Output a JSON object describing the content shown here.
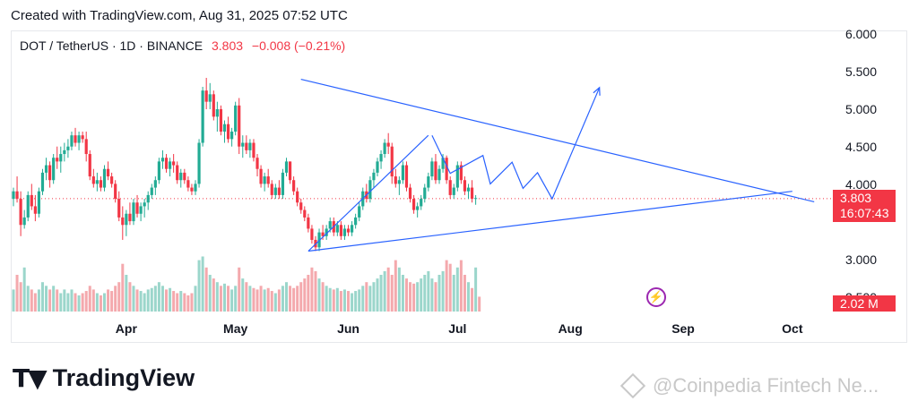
{
  "attribution": "Created with TradingView.com, Aug 31, 2025 07:52 UTC",
  "header": {
    "symbol": "DOT / TetherUS · 1D · BINANCE",
    "price": "3.803",
    "change": "−0.008 (−0.21%)"
  },
  "badges": {
    "price": "3.803",
    "countdown": "16:07:43",
    "volume": "2.02 M"
  },
  "logo": {
    "text": "TradingView",
    "icon": "tradingview-logo-icon"
  },
  "watermark": {
    "text": "@Coinpedia Fintech Ne...",
    "icon": "coinpedia-diamond-icon"
  },
  "colors": {
    "up": "#22ab94",
    "down": "#f23645",
    "up_vol": "#9bd6cb",
    "down_vol": "#f4a9ad",
    "drawing": "#2962ff",
    "price_line": "#f23645",
    "flash": "#9c27b0"
  },
  "chart_data": {
    "type": "candlestick",
    "symbol": "DOT / TetherUS",
    "interval": "1D",
    "exchange": "BINANCE",
    "y_ticks": [
      "6.000",
      "5.500",
      "5.000",
      "4.500",
      "4.000",
      "3.000",
      "2.500"
    ],
    "ylim": [
      2.3,
      6.05
    ],
    "x_ticks": [
      "Apr",
      "May",
      "Jun",
      "Jul",
      "Aug",
      "Sep",
      "Oct"
    ],
    "x_tick_days": [
      31,
      61,
      92,
      122,
      153,
      184,
      214
    ],
    "last_price": 3.803,
    "candles": [
      [
        3.8,
        3.95,
        3.7,
        3.9
      ],
      [
        3.9,
        4.1,
        3.75,
        3.8
      ],
      [
        3.8,
        3.9,
        3.3,
        3.45
      ],
      [
        3.45,
        3.65,
        3.4,
        3.55
      ],
      [
        3.55,
        3.9,
        3.5,
        3.85
      ],
      [
        3.85,
        4.0,
        3.65,
        3.7
      ],
      [
        3.7,
        3.85,
        3.5,
        3.6
      ],
      [
        3.6,
        3.95,
        3.55,
        3.9
      ],
      [
        3.9,
        4.2,
        3.85,
        4.15
      ],
      [
        4.15,
        4.35,
        4.05,
        4.25
      ],
      [
        4.25,
        4.3,
        3.95,
        4.05
      ],
      [
        4.05,
        4.4,
        4.0,
        4.35
      ],
      [
        4.35,
        4.5,
        4.2,
        4.3
      ],
      [
        4.3,
        4.5,
        4.15,
        4.4
      ],
      [
        4.4,
        4.55,
        4.3,
        4.45
      ],
      [
        4.45,
        4.6,
        4.35,
        4.5
      ],
      [
        4.5,
        4.7,
        4.45,
        4.65
      ],
      [
        4.65,
        4.75,
        4.5,
        4.55
      ],
      [
        4.55,
        4.7,
        4.45,
        4.65
      ],
      [
        4.65,
        4.7,
        4.55,
        4.6
      ],
      [
        4.6,
        4.7,
        4.3,
        4.4
      ],
      [
        4.4,
        4.45,
        4.05,
        4.1
      ],
      [
        4.1,
        4.2,
        3.95,
        4.0
      ],
      [
        4.0,
        4.15,
        3.9,
        4.05
      ],
      [
        4.05,
        4.1,
        3.9,
        3.95
      ],
      [
        3.95,
        4.25,
        3.9,
        4.2
      ],
      [
        4.2,
        4.3,
        4.05,
        4.1
      ],
      [
        4.1,
        4.15,
        3.95,
        4.0
      ],
      [
        4.0,
        4.05,
        3.75,
        3.8
      ],
      [
        3.8,
        3.9,
        3.5,
        3.55
      ],
      [
        3.55,
        3.7,
        3.25,
        3.45
      ],
      [
        3.45,
        3.65,
        3.3,
        3.6
      ],
      [
        3.6,
        3.75,
        3.45,
        3.5
      ],
      [
        3.5,
        3.8,
        3.45,
        3.75
      ],
      [
        3.75,
        3.85,
        3.55,
        3.6
      ],
      [
        3.6,
        3.75,
        3.5,
        3.7
      ],
      [
        3.7,
        3.8,
        3.55,
        3.75
      ],
      [
        3.75,
        3.9,
        3.65,
        3.85
      ],
      [
        3.85,
        4.0,
        3.8,
        3.95
      ],
      [
        3.95,
        4.1,
        3.85,
        4.05
      ],
      [
        4.05,
        4.35,
        4.0,
        4.3
      ],
      [
        4.3,
        4.45,
        4.2,
        4.35
      ],
      [
        4.35,
        4.4,
        4.15,
        4.2
      ],
      [
        4.2,
        4.35,
        4.1,
        4.3
      ],
      [
        4.3,
        4.4,
        4.15,
        4.25
      ],
      [
        4.25,
        4.3,
        4.0,
        4.05
      ],
      [
        4.05,
        4.2,
        3.95,
        4.15
      ],
      [
        4.15,
        4.2,
        4.0,
        4.05
      ],
      [
        4.05,
        4.1,
        3.9,
        3.95
      ],
      [
        3.95,
        4.0,
        3.85,
        3.9
      ],
      [
        3.9,
        4.05,
        3.85,
        4.0
      ],
      [
        4.0,
        4.6,
        3.95,
        4.55
      ],
      [
        4.55,
        5.3,
        4.5,
        5.25
      ],
      [
        5.25,
        5.42,
        5.0,
        5.1
      ],
      [
        5.1,
        5.35,
        5.0,
        5.2
      ],
      [
        5.2,
        5.25,
        4.85,
        4.9
      ],
      [
        4.9,
        5.1,
        4.7,
        5.0
      ],
      [
        5.0,
        5.05,
        4.65,
        4.7
      ],
      [
        4.7,
        4.85,
        4.55,
        4.8
      ],
      [
        4.8,
        4.9,
        4.55,
        4.6
      ],
      [
        4.6,
        4.75,
        4.5,
        4.7
      ],
      [
        4.7,
        5.1,
        4.65,
        5.05
      ],
      [
        5.05,
        5.15,
        4.4,
        4.5
      ],
      [
        4.5,
        4.65,
        4.35,
        4.55
      ],
      [
        4.55,
        4.65,
        4.4,
        4.45
      ],
      [
        4.45,
        4.6,
        4.35,
        4.55
      ],
      [
        4.55,
        4.6,
        4.3,
        4.35
      ],
      [
        4.35,
        4.4,
        4.1,
        4.2
      ],
      [
        4.2,
        4.25,
        3.95,
        4.0
      ],
      [
        4.0,
        4.15,
        3.9,
        4.1
      ],
      [
        4.1,
        4.2,
        3.95,
        4.0
      ],
      [
        4.0,
        4.05,
        3.8,
        3.85
      ],
      [
        3.85,
        4.0,
        3.8,
        3.95
      ],
      [
        3.95,
        4.05,
        3.8,
        3.85
      ],
      [
        3.85,
        4.2,
        3.8,
        4.15
      ],
      [
        4.15,
        4.35,
        4.1,
        4.3
      ],
      [
        4.3,
        4.3,
        4.0,
        4.05
      ],
      [
        4.05,
        4.1,
        3.85,
        3.9
      ],
      [
        3.9,
        3.95,
        3.7,
        3.75
      ],
      [
        3.75,
        3.8,
        3.6,
        3.65
      ],
      [
        3.65,
        3.7,
        3.5,
        3.55
      ],
      [
        3.55,
        3.6,
        3.35,
        3.4
      ],
      [
        3.4,
        3.45,
        3.2,
        3.25
      ],
      [
        3.25,
        3.3,
        3.1,
        3.15
      ],
      [
        3.15,
        3.4,
        3.1,
        3.35
      ],
      [
        3.35,
        3.45,
        3.25,
        3.3
      ],
      [
        3.3,
        3.45,
        3.25,
        3.4
      ],
      [
        3.4,
        3.55,
        3.35,
        3.5
      ],
      [
        3.5,
        3.55,
        3.3,
        3.35
      ],
      [
        3.35,
        3.5,
        3.3,
        3.45
      ],
      [
        3.45,
        3.5,
        3.25,
        3.3
      ],
      [
        3.3,
        3.45,
        3.25,
        3.4
      ],
      [
        3.4,
        3.45,
        3.3,
        3.35
      ],
      [
        3.35,
        3.5,
        3.3,
        3.45
      ],
      [
        3.45,
        3.6,
        3.4,
        3.55
      ],
      [
        3.55,
        3.75,
        3.5,
        3.7
      ],
      [
        3.7,
        3.95,
        3.65,
        3.9
      ],
      [
        3.9,
        4.0,
        3.75,
        3.8
      ],
      [
        3.8,
        4.1,
        3.75,
        4.05
      ],
      [
        4.05,
        4.2,
        3.95,
        4.15
      ],
      [
        4.15,
        4.35,
        4.1,
        4.3
      ],
      [
        4.3,
        4.45,
        4.2,
        4.4
      ],
      [
        4.4,
        4.6,
        4.35,
        4.55
      ],
      [
        4.55,
        4.68,
        4.4,
        4.5
      ],
      [
        4.5,
        4.55,
        4.0,
        4.1
      ],
      [
        4.1,
        4.2,
        3.95,
        4.0
      ],
      [
        4.0,
        4.1,
        3.85,
        4.05
      ],
      [
        4.05,
        4.3,
        4.0,
        4.25
      ],
      [
        4.25,
        4.3,
        3.9,
        3.95
      ],
      [
        3.95,
        4.0,
        3.75,
        3.8
      ],
      [
        3.8,
        3.85,
        3.6,
        3.65
      ],
      [
        3.65,
        3.75,
        3.55,
        3.7
      ],
      [
        3.7,
        3.85,
        3.65,
        3.8
      ],
      [
        3.8,
        4.0,
        3.75,
        3.95
      ],
      [
        3.95,
        4.15,
        3.9,
        4.1
      ],
      [
        4.1,
        4.35,
        4.05,
        4.3
      ],
      [
        4.3,
        4.4,
        4.0,
        4.05
      ],
      [
        4.05,
        4.25,
        4.0,
        4.2
      ],
      [
        4.2,
        4.4,
        4.15,
        4.35
      ],
      [
        4.35,
        4.38,
        4.0,
        4.05
      ],
      [
        4.05,
        4.1,
        3.8,
        3.85
      ],
      [
        3.85,
        4.0,
        3.8,
        3.95
      ],
      [
        3.95,
        4.3,
        3.9,
        4.25
      ],
      [
        4.25,
        4.3,
        4.0,
        4.05
      ],
      [
        4.05,
        4.1,
        3.85,
        3.9
      ],
      [
        3.9,
        4.0,
        3.8,
        3.95
      ],
      [
        3.95,
        4.05,
        3.75,
        3.8
      ],
      [
        3.8,
        3.85,
        3.72,
        3.81
      ]
    ],
    "volume_millions": [
      3,
      5,
      4,
      6,
      3.5,
      3,
      2.5,
      3,
      4,
      3.5,
      3,
      3.5,
      3,
      2.5,
      3,
      2.5,
      3,
      2.5,
      2.2,
      2.5,
      2.8,
      3.5,
      3,
      2.5,
      2.2,
      2.5,
      3,
      2.8,
      3.5,
      4,
      6.5,
      5,
      4,
      3.5,
      3,
      2.8,
      2.5,
      3,
      3.2,
      3.5,
      4,
      3.5,
      3,
      3.2,
      2.8,
      2.5,
      2.8,
      2.5,
      2.2,
      2.5,
      3.5,
      7,
      7.5,
      6,
      5,
      4.5,
      4,
      3.5,
      3.8,
      3.5,
      3,
      3.5,
      6,
      4.5,
      4,
      3.5,
      3.2,
      3,
      3.5,
      3,
      3.2,
      2.8,
      2.5,
      3,
      3.5,
      4,
      3.5,
      3.2,
      3.5,
      4,
      4.5,
      5,
      6,
      5.5,
      4.5,
      4,
      3.5,
      3.2,
      3,
      3.2,
      2.8,
      3,
      2.8,
      2.5,
      2.8,
      3,
      3.5,
      4,
      3.5,
      4,
      4.5,
      5,
      5.5,
      6,
      5,
      7,
      6,
      5,
      4.5,
      4,
      3.8,
      4,
      4.5,
      5,
      5.5,
      4.5,
      4,
      5,
      5.5,
      7,
      6.5,
      5,
      6,
      7,
      5,
      4,
      3.2,
      6,
      2.02
    ],
    "drawings": {
      "triangle_upper": [
        [
          79,
          5.4
        ],
        [
          220,
          3.76
        ]
      ],
      "triangle_lower": [
        [
          81,
          3.1
        ],
        [
          214,
          3.9
        ]
      ],
      "projection_path": [
        [
          115,
          4.65
        ],
        [
          120,
          4.14
        ],
        [
          129,
          4.38
        ],
        [
          131,
          4.0
        ],
        [
          137,
          4.29
        ],
        [
          140,
          3.94
        ],
        [
          144,
          4.15
        ],
        [
          148,
          3.8
        ],
        [
          161,
          5.29
        ]
      ],
      "initial_rally": [
        [
          81,
          3.1
        ],
        [
          114,
          4.65
        ]
      ]
    }
  }
}
